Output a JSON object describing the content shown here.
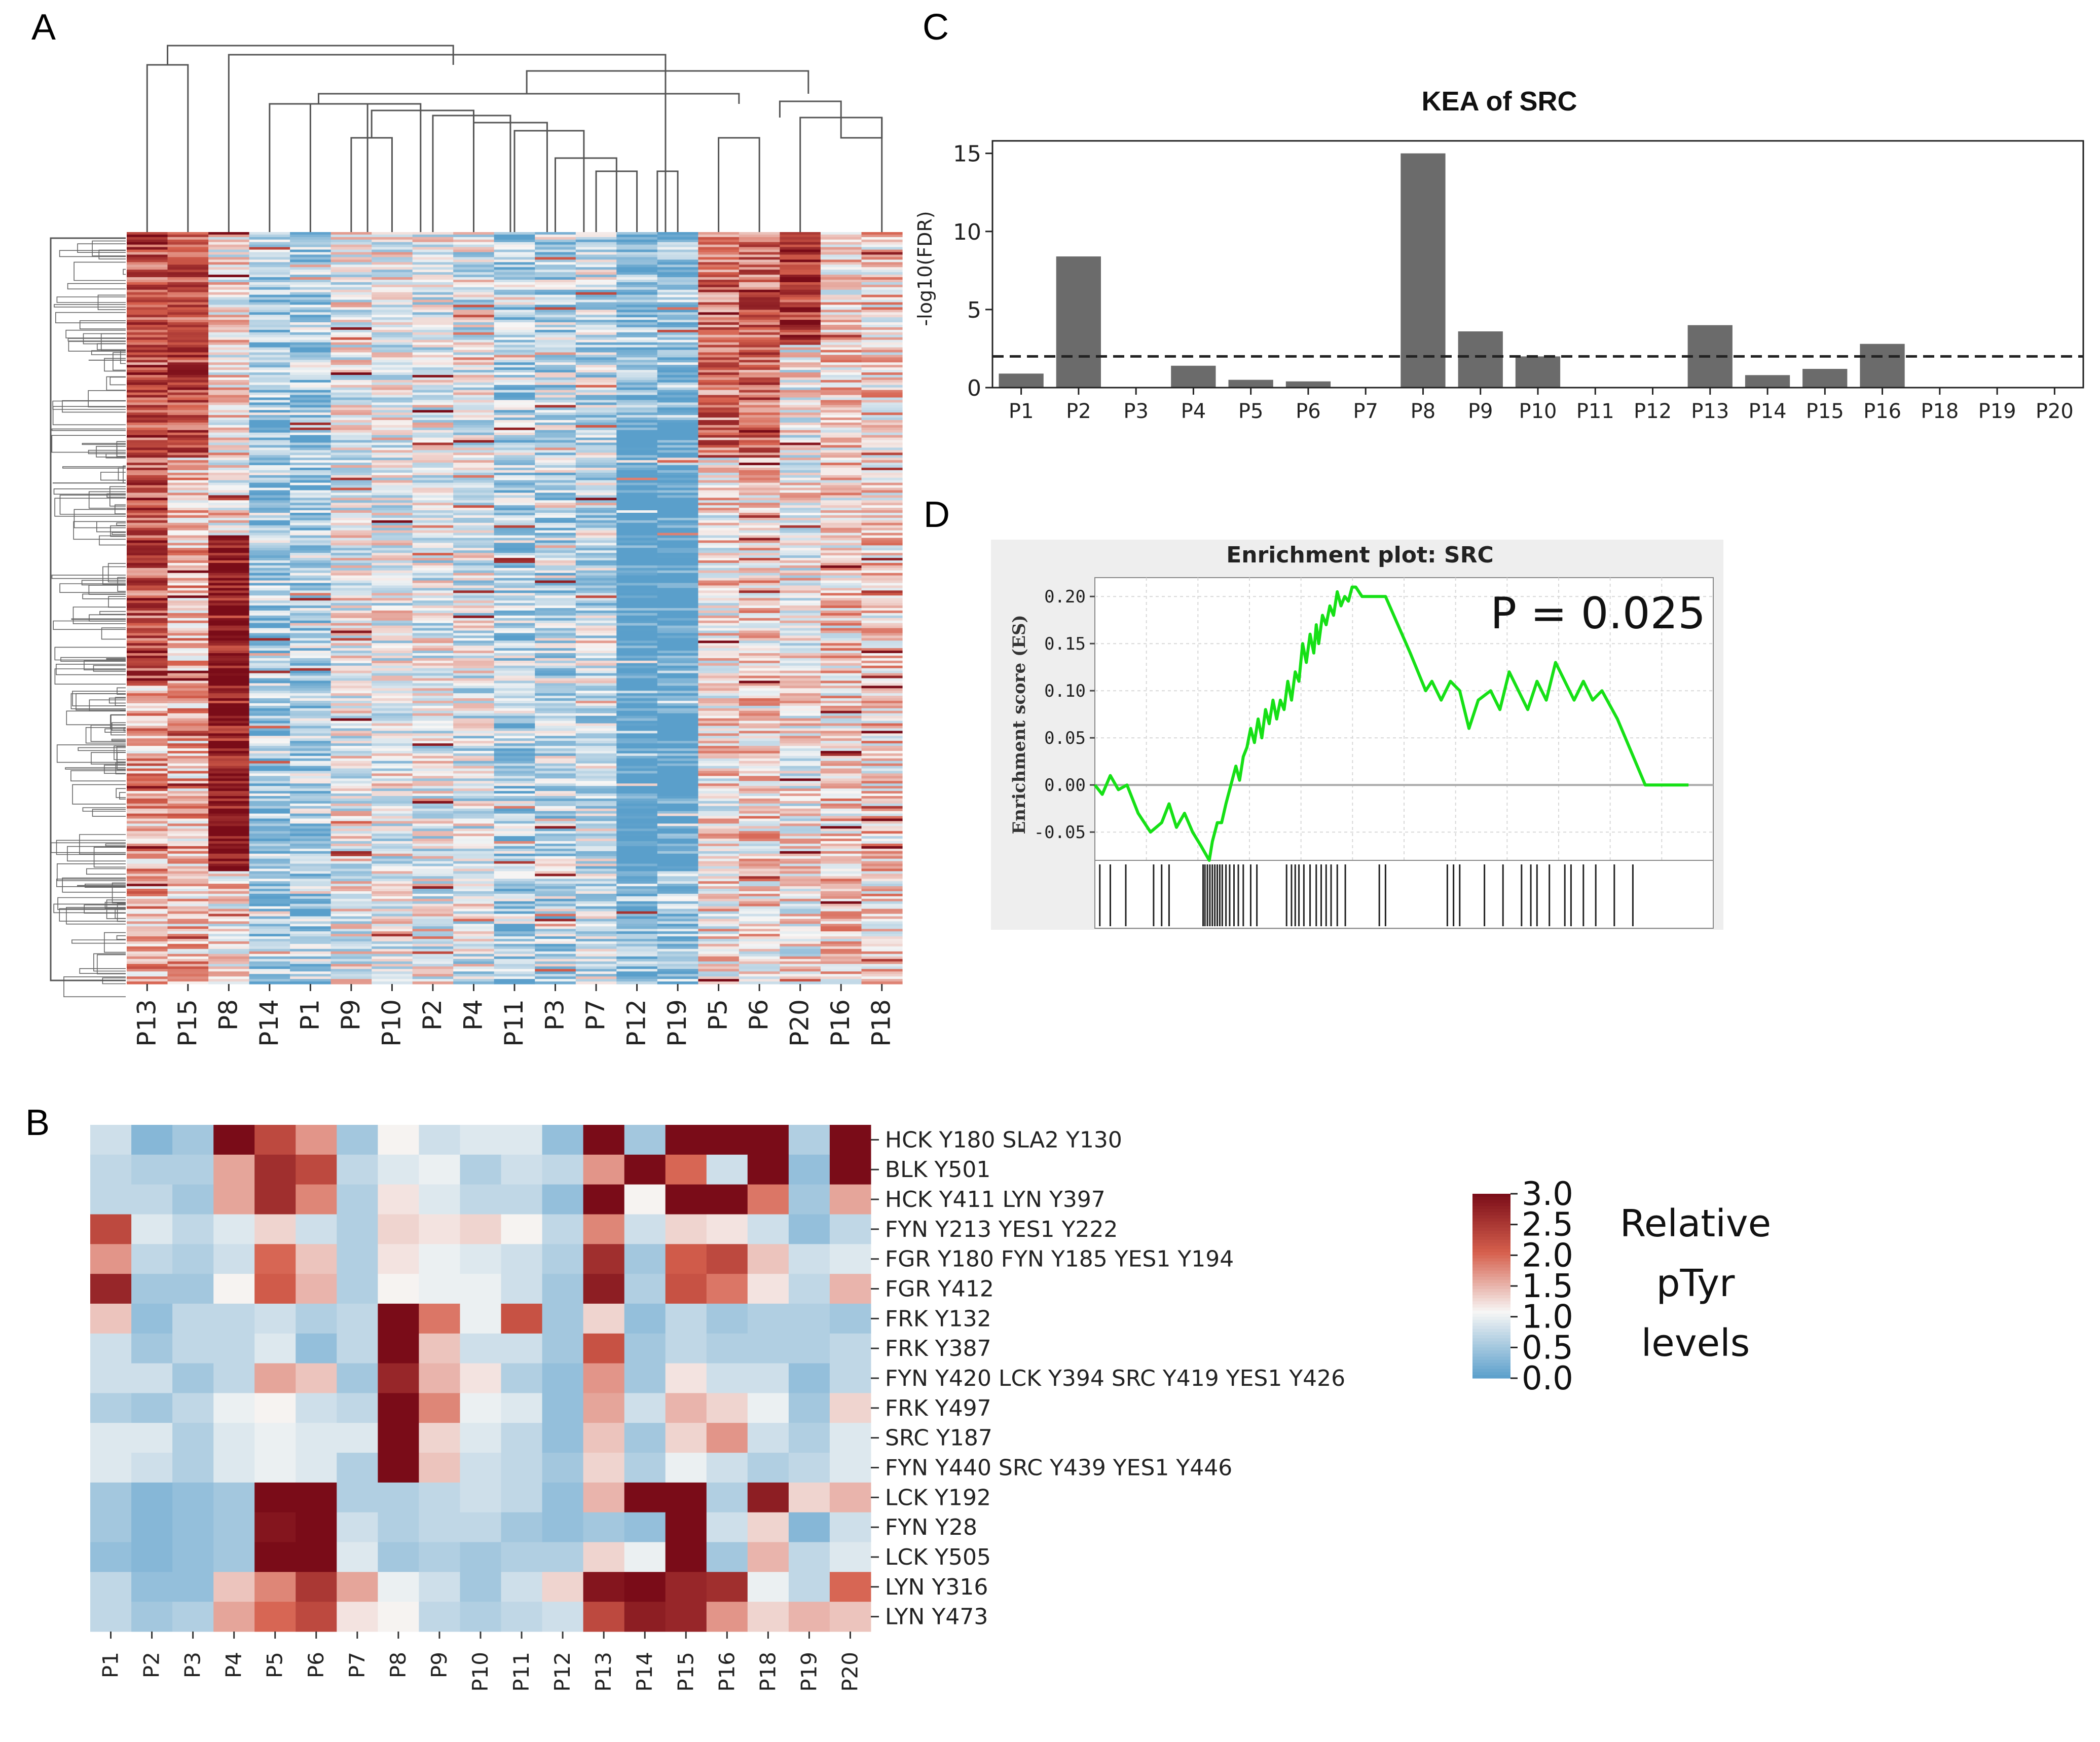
{
  "panels": {
    "a": "A",
    "b": "B",
    "c": "C",
    "d": "D"
  },
  "colors": {
    "low": "#5a9fcb",
    "mid": "#f7f6f5",
    "high": "#7a0c18",
    "bar": "#6b6b6b",
    "es_line": "#16e016"
  },
  "chart_data": [
    {
      "id": "A",
      "type": "heatmap",
      "title": "",
      "columns": [
        "P13",
        "P15",
        "P8",
        "P14",
        "P1",
        "P9",
        "P10",
        "P2",
        "P4",
        "P11",
        "P3",
        "P7",
        "P12",
        "P19",
        "P5",
        "P6",
        "P20",
        "P16",
        "P18"
      ],
      "n_rows": 300,
      "value_range": [
        0,
        3
      ],
      "column_dendrogram": true,
      "row_dendrogram": true,
      "column_profiles": [
        {
          "col": "P13",
          "pattern": "high upper and middle",
          "base": 1.6
        },
        {
          "col": "P15",
          "pattern": "high upper",
          "base": 1.5
        },
        {
          "col": "P8",
          "pattern": "high middle-lower block",
          "base": 1.2
        },
        {
          "col": "P14",
          "pattern": "mostly low",
          "base": 0.5
        },
        {
          "col": "P1",
          "pattern": "low",
          "base": 0.55
        },
        {
          "col": "P9",
          "pattern": "mixed",
          "base": 1.0
        },
        {
          "col": "P10",
          "pattern": "mixed",
          "base": 1.0
        },
        {
          "col": "P2",
          "pattern": "mixed",
          "base": 0.95
        },
        {
          "col": "P4",
          "pattern": "mixed",
          "base": 0.9
        },
        {
          "col": "P11",
          "pattern": "low",
          "base": 0.6
        },
        {
          "col": "P3",
          "pattern": "low",
          "base": 0.7
        },
        {
          "col": "P7",
          "pattern": "low",
          "base": 0.75
        },
        {
          "col": "P12",
          "pattern": "very low middle",
          "base": 0.35
        },
        {
          "col": "P19",
          "pattern": "very low middle",
          "base": 0.4
        },
        {
          "col": "P5",
          "pattern": "high upper",
          "base": 1.2
        },
        {
          "col": "P6",
          "pattern": "high upper",
          "base": 1.3
        },
        {
          "col": "P20",
          "pattern": "high top",
          "base": 1.1
        },
        {
          "col": "P16",
          "pattern": "moderately high",
          "base": 1.3
        },
        {
          "col": "P18",
          "pattern": "moderately high",
          "base": 1.3
        }
      ]
    },
    {
      "id": "B",
      "type": "heatmap",
      "title": "",
      "columns": [
        "P1",
        "P2",
        "P3",
        "P4",
        "P5",
        "P6",
        "P7",
        "P8",
        "P9",
        "P10",
        "P11",
        "P12",
        "P13",
        "P14",
        "P15",
        "P16",
        "P18",
        "P19",
        "P20"
      ],
      "rows": [
        "HCK Y180 SLA2 Y130",
        "BLK Y501",
        "HCK Y411 LYN Y397",
        "FYN Y213 YES1 Y222",
        "FGR Y180 FYN Y185 YES1 Y194",
        "FGR Y412",
        "FRK Y132",
        "FRK Y387",
        "FYN Y420 LCK Y394 SRC Y419 YES1 Y426",
        "FRK Y497",
        "SRC Y187",
        "FYN Y440 SRC Y439 YES1 Y446",
        "LCK Y192",
        "FYN Y28",
        "LCK Y505",
        "LYN Y316",
        "LYN Y473"
      ],
      "values": [
        [
          0.8,
          0.3,
          0.5,
          3.0,
          2.3,
          1.7,
          0.5,
          1.1,
          0.8,
          0.9,
          0.9,
          0.4,
          3.0,
          0.5,
          3.0,
          3.0,
          3.0,
          0.6,
          3.0
        ],
        [
          0.7,
          0.6,
          0.6,
          1.6,
          2.6,
          2.3,
          0.7,
          0.9,
          1.0,
          0.6,
          0.8,
          0.7,
          1.7,
          3.0,
          2.0,
          0.8,
          3.0,
          0.4,
          3.0
        ],
        [
          0.7,
          0.7,
          0.5,
          1.6,
          2.6,
          1.8,
          0.6,
          1.2,
          0.9,
          0.7,
          0.7,
          0.4,
          3.0,
          1.1,
          3.0,
          3.0,
          1.9,
          0.5,
          1.6
        ],
        [
          2.3,
          0.9,
          0.7,
          0.9,
          1.3,
          0.8,
          0.6,
          1.3,
          1.2,
          1.3,
          1.1,
          0.7,
          1.8,
          0.8,
          1.3,
          1.2,
          0.8,
          0.4,
          0.7
        ],
        [
          1.7,
          0.7,
          0.6,
          0.8,
          2.0,
          1.4,
          0.6,
          1.2,
          1.0,
          0.9,
          0.8,
          0.6,
          2.6,
          0.5,
          2.1,
          2.3,
          1.4,
          0.8,
          0.9
        ],
        [
          2.7,
          0.5,
          0.5,
          1.1,
          2.1,
          1.5,
          0.6,
          1.1,
          1.0,
          1.0,
          0.8,
          0.5,
          2.8,
          0.6,
          2.2,
          1.9,
          1.2,
          0.7,
          1.5
        ],
        [
          1.4,
          0.4,
          0.7,
          0.7,
          0.8,
          0.6,
          0.7,
          3.0,
          1.9,
          1.0,
          2.2,
          0.5,
          1.3,
          0.4,
          0.7,
          0.5,
          0.6,
          0.6,
          0.5
        ],
        [
          0.8,
          0.5,
          0.7,
          0.7,
          0.9,
          0.4,
          0.7,
          3.0,
          1.4,
          0.8,
          0.8,
          0.5,
          2.2,
          0.5,
          0.7,
          0.6,
          0.6,
          0.6,
          0.7
        ],
        [
          0.8,
          0.8,
          0.5,
          0.7,
          1.6,
          1.4,
          0.5,
          2.7,
          1.5,
          1.2,
          0.6,
          0.4,
          1.7,
          0.5,
          1.2,
          0.8,
          0.8,
          0.4,
          0.7
        ],
        [
          0.6,
          0.5,
          0.7,
          1.0,
          1.1,
          0.8,
          0.7,
          3.0,
          1.8,
          1.0,
          0.9,
          0.4,
          1.6,
          0.8,
          1.5,
          1.3,
          1.0,
          0.5,
          1.3
        ],
        [
          0.9,
          0.9,
          0.6,
          0.9,
          1.0,
          0.9,
          0.9,
          3.0,
          1.3,
          0.9,
          0.7,
          0.4,
          1.4,
          0.5,
          1.3,
          1.7,
          0.8,
          0.6,
          0.9
        ],
        [
          0.9,
          0.8,
          0.6,
          0.9,
          1.0,
          0.9,
          0.6,
          3.0,
          1.4,
          0.8,
          0.7,
          0.5,
          1.3,
          0.6,
          1.0,
          0.8,
          0.6,
          0.7,
          0.9
        ],
        [
          0.5,
          0.3,
          0.4,
          0.5,
          3.0,
          3.0,
          0.6,
          0.6,
          0.7,
          0.8,
          0.7,
          0.4,
          1.5,
          3.0,
          3.0,
          0.6,
          2.8,
          1.3,
          1.5
        ],
        [
          0.5,
          0.3,
          0.4,
          0.5,
          2.9,
          3.0,
          0.8,
          0.6,
          0.7,
          0.7,
          0.5,
          0.4,
          0.5,
          0.4,
          3.0,
          0.8,
          1.3,
          0.3,
          0.8
        ],
        [
          0.4,
          0.3,
          0.4,
          0.5,
          3.0,
          3.0,
          0.9,
          0.5,
          0.6,
          0.5,
          0.6,
          0.6,
          1.3,
          1.0,
          3.0,
          0.5,
          1.5,
          0.7,
          0.9
        ],
        [
          0.7,
          0.4,
          0.4,
          1.4,
          1.8,
          2.5,
          1.6,
          1.0,
          0.8,
          0.5,
          0.8,
          1.3,
          2.9,
          3.0,
          2.7,
          2.6,
          1.0,
          0.7,
          2.0
        ],
        [
          0.7,
          0.5,
          0.6,
          1.6,
          2.0,
          2.3,
          1.2,
          1.1,
          0.7,
          0.6,
          0.7,
          0.8,
          2.3,
          2.8,
          2.7,
          1.7,
          1.3,
          1.5,
          1.4
        ]
      ],
      "colorbar": {
        "ticks": [
          "3.0",
          "2.5",
          "2.0",
          "1.5",
          "1.0",
          "0.5",
          "0.0"
        ],
        "label": [
          "Relative",
          "pTyr",
          "levels"
        ],
        "range": [
          0,
          3
        ]
      }
    },
    {
      "id": "C",
      "type": "bar",
      "title": "KEA of SRC",
      "ylabel": "-log10(FDR)",
      "xlabel": "",
      "categories": [
        "P1",
        "P2",
        "P3",
        "P4",
        "P5",
        "P6",
        "P7",
        "P8",
        "P9",
        "P10",
        "P11",
        "P12",
        "P13",
        "P14",
        "P15",
        "P16",
        "P18",
        "P19",
        "P20"
      ],
      "values": [
        0.9,
        8.4,
        0,
        1.4,
        0.5,
        0.4,
        0,
        15.0,
        3.6,
        2.0,
        0,
        0,
        4.0,
        0.8,
        1.2,
        2.8,
        0,
        0,
        0
      ],
      "threshold": 2.0,
      "ylim": [
        0,
        15.8
      ],
      "yticks": [
        0,
        5,
        10,
        15
      ]
    },
    {
      "id": "D",
      "type": "line",
      "title": "Enrichment plot: SRC",
      "ylabel": "Enrichment score (ES)",
      "annotation": "P = 0.025",
      "ylim": [
        -0.08,
        0.22
      ],
      "yticks": [
        "0.20",
        "0.15",
        "0.10",
        "0.05",
        "0.00",
        "-0.05"
      ],
      "ytick_values": [
        0.2,
        0.15,
        0.1,
        0.05,
        0.0,
        -0.05
      ],
      "x_range": [
        0,
        1000
      ],
      "es": {
        "x": [
          0,
          12,
          25,
          38,
          52,
          70,
          90,
          108,
          120,
          132,
          145,
          158,
          172,
          185,
          190,
          198,
          205,
          212,
          220,
          228,
          234,
          240,
          246,
          252,
          258,
          264,
          270,
          276,
          282,
          288,
          294,
          300,
          306,
          312,
          318,
          324,
          330,
          336,
          342,
          348,
          354,
          358,
          362,
          368,
          374,
          380,
          386,
          392,
          398,
          404,
          410,
          416,
          422,
          432,
          470,
          510,
          535,
          545,
          560,
          575,
          590,
          605,
          620,
          640,
          655,
          670,
          685,
          700,
          715,
          730,
          745,
          760,
          775,
          790,
          805,
          820,
          845,
          890,
          960
        ],
        "y": [
          0.0,
          -0.01,
          0.01,
          -0.005,
          0.0,
          -0.03,
          -0.05,
          -0.04,
          -0.02,
          -0.045,
          -0.03,
          -0.05,
          -0.065,
          -0.08,
          -0.06,
          -0.04,
          -0.04,
          -0.02,
          0.0,
          0.02,
          0.005,
          0.03,
          0.04,
          0.06,
          0.045,
          0.07,
          0.05,
          0.08,
          0.065,
          0.09,
          0.07,
          0.09,
          0.08,
          0.11,
          0.09,
          0.12,
          0.11,
          0.15,
          0.13,
          0.16,
          0.14,
          0.17,
          0.15,
          0.18,
          0.17,
          0.19,
          0.18,
          0.205,
          0.19,
          0.2,
          0.195,
          0.21,
          0.21,
          0.2,
          0.2,
          0.14,
          0.1,
          0.11,
          0.09,
          0.11,
          0.1,
          0.06,
          0.09,
          0.1,
          0.08,
          0.12,
          0.1,
          0.08,
          0.11,
          0.09,
          0.13,
          0.11,
          0.09,
          0.11,
          0.09,
          0.1,
          0.07,
          0.0,
          0.0
        ]
      },
      "hits": [
        8,
        25,
        50,
        95,
        108,
        120,
        175,
        178,
        182,
        186,
        190,
        194,
        198,
        202,
        206,
        212,
        218,
        225,
        232,
        240,
        252,
        262,
        310,
        318,
        324,
        330,
        338,
        348,
        358,
        366,
        374,
        382,
        392,
        405,
        460,
        470,
        570,
        580,
        590,
        630,
        660,
        690,
        705,
        715,
        735,
        760,
        770,
        790,
        810,
        840,
        870
      ]
    }
  ]
}
